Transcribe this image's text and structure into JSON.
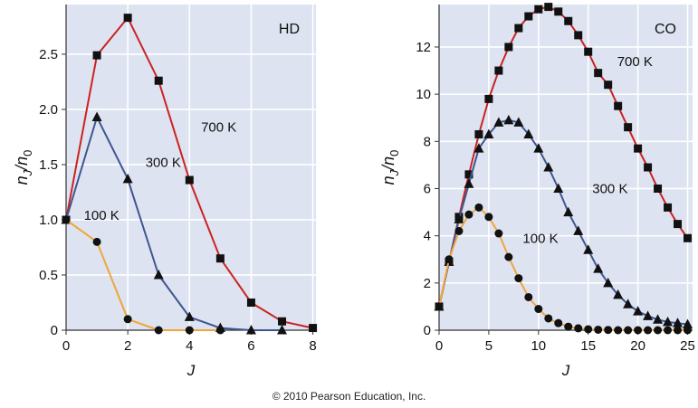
{
  "copyright": "© 2010 Pearson Education, Inc.",
  "colors": {
    "plot_bg": "#dde3f1",
    "grid": "#ffffff",
    "axis": "#333333",
    "series_700": "#cc2222",
    "series_300": "#3f5690",
    "series_100": "#f0a63a",
    "marker": "#111111"
  },
  "chart_data": [
    {
      "type": "line",
      "title": "HD",
      "xlabel": "J",
      "ylabel": "nJ/n0",
      "xlim": [
        0,
        8.1
      ],
      "ylim": [
        0,
        2.95
      ],
      "xticks": [
        0,
        2,
        4,
        6,
        8
      ],
      "yticks": [
        0,
        0.5,
        1.0,
        1.5,
        2.0,
        2.5
      ],
      "ytick_labels": [
        "0",
        "0.5",
        "1.0",
        "1.5",
        "2.0",
        "2.5"
      ],
      "series": [
        {
          "name": "700 K",
          "color": "#cc2222",
          "marker": "square",
          "x": [
            0,
            1,
            2,
            3,
            4,
            5,
            6,
            7,
            8
          ],
          "y": [
            1.0,
            2.49,
            2.83,
            2.26,
            1.36,
            0.65,
            0.25,
            0.08,
            0.02
          ]
        },
        {
          "name": "300 K",
          "color": "#3f5690",
          "marker": "triangle",
          "x": [
            0,
            1,
            2,
            3,
            4,
            5,
            6,
            7
          ],
          "y": [
            1.0,
            1.93,
            1.37,
            0.5,
            0.12,
            0.02,
            0.0,
            0.0
          ]
        },
        {
          "name": "100 K",
          "color": "#f0a63a",
          "marker": "circle",
          "x": [
            0,
            1,
            2,
            3,
            4,
            5
          ],
          "y": [
            1.0,
            0.8,
            0.1,
            0.0,
            0.0,
            0.0
          ]
        }
      ],
      "annotations": [
        {
          "text": "700 K",
          "x": 4.95,
          "y": 1.8
        },
        {
          "text": "300 K",
          "x": 3.15,
          "y": 1.48
        },
        {
          "text": "100 K",
          "x": 1.15,
          "y": 1.0
        }
      ]
    },
    {
      "type": "line",
      "title": "CO",
      "xlabel": "J",
      "ylabel": "nJ/n0",
      "xlim": [
        0,
        25.5
      ],
      "ylim": [
        0,
        13.8
      ],
      "xticks": [
        0,
        5,
        10,
        15,
        20,
        25
      ],
      "yticks": [
        0,
        2,
        4,
        6,
        8,
        10,
        12
      ],
      "ytick_labels": [
        "0",
        "2",
        "4",
        "6",
        "8",
        "10",
        "12"
      ],
      "series": [
        {
          "name": "700 K",
          "color": "#cc2222",
          "marker": "square",
          "x": [
            0,
            1,
            2,
            3,
            4,
            5,
            6,
            7,
            8,
            9,
            10,
            11,
            12,
            13,
            14,
            15,
            16,
            17,
            18,
            19,
            20,
            21,
            22,
            23,
            24,
            25
          ],
          "y": [
            1.0,
            2.9,
            4.8,
            6.6,
            8.3,
            9.8,
            11.0,
            12.0,
            12.8,
            13.3,
            13.6,
            13.7,
            13.5,
            13.1,
            12.5,
            11.8,
            10.9,
            10.4,
            9.5,
            8.6,
            7.7,
            6.9,
            6.0,
            5.2,
            4.5,
            3.9
          ]
        },
        {
          "name": "300 K",
          "color": "#3f5690",
          "marker": "triangle",
          "x": [
            0,
            1,
            2,
            3,
            4,
            5,
            6,
            7,
            8,
            9,
            10,
            11,
            12,
            13,
            14,
            15,
            16,
            17,
            18,
            19,
            20,
            21,
            22,
            23,
            24,
            25
          ],
          "y": [
            1.0,
            2.9,
            4.7,
            6.2,
            7.7,
            8.3,
            8.8,
            8.9,
            8.8,
            8.3,
            7.7,
            6.9,
            6.0,
            5.0,
            4.2,
            3.4,
            2.6,
            2.0,
            1.5,
            1.1,
            0.8,
            0.6,
            0.45,
            0.35,
            0.3,
            0.25
          ]
        },
        {
          "name": "100 K",
          "color": "#f0a63a",
          "marker": "circle",
          "x": [
            0,
            1,
            2,
            3,
            4,
            5,
            6,
            7,
            8,
            9,
            10,
            11,
            12,
            13,
            14,
            15,
            16,
            17,
            18,
            19,
            20,
            21,
            22,
            23,
            24,
            25
          ],
          "y": [
            1.0,
            3.0,
            4.2,
            4.9,
            5.2,
            4.8,
            4.1,
            3.1,
            2.2,
            1.4,
            0.9,
            0.5,
            0.3,
            0.15,
            0.08,
            0.04,
            0.02,
            0.01,
            0.0,
            0.0,
            0.0,
            0.0,
            0.0,
            0.0,
            0.0,
            0.0
          ]
        }
      ],
      "annotations": [
        {
          "text": "700 K",
          "x": 19.7,
          "y": 11.2
        },
        {
          "text": "300 K",
          "x": 17.2,
          "y": 5.8
        },
        {
          "text": "100 K",
          "x": 10.2,
          "y": 3.7
        }
      ]
    }
  ]
}
